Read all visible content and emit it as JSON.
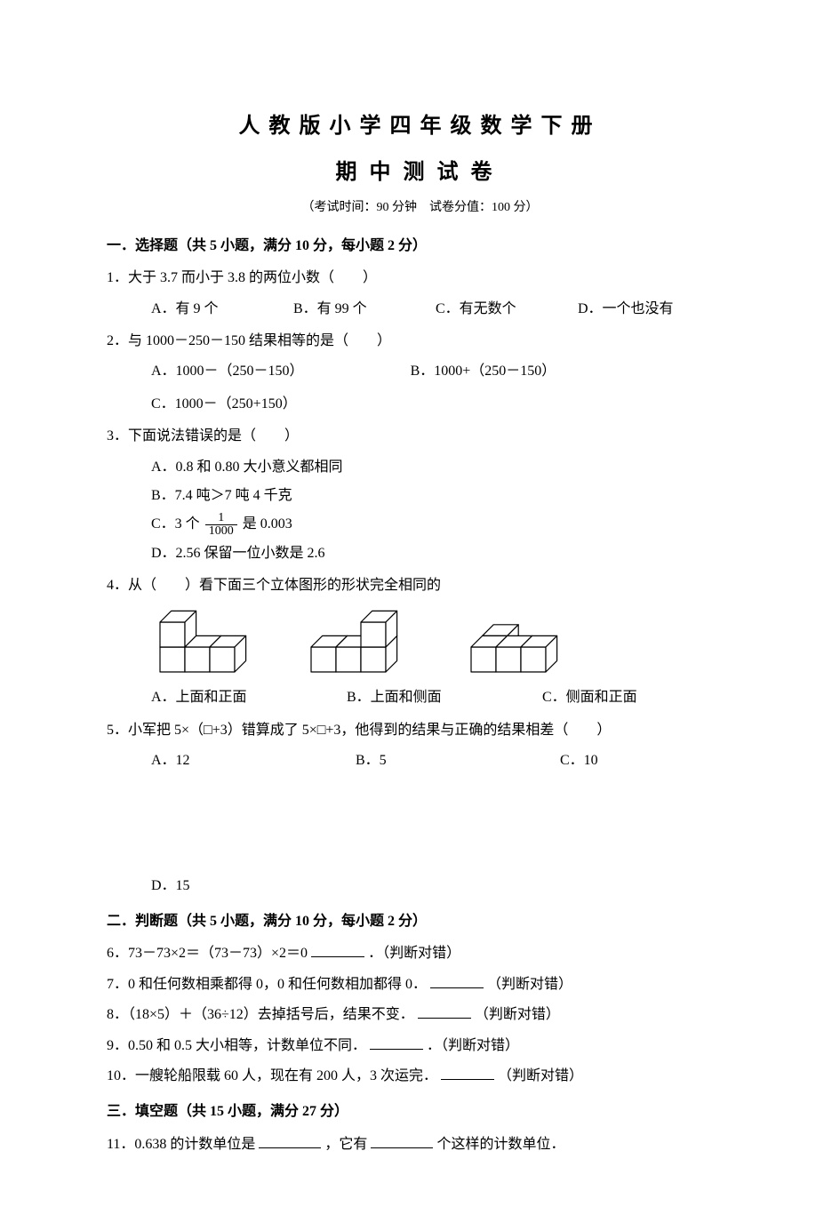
{
  "title1": "人教版小学四年级数学下册",
  "title2": "期中测试卷",
  "meta": "（考试时间：90 分钟　试卷分值：100 分）",
  "sec1": {
    "head": "一．选择题（共 5 小题，满分 10 分，每小题 2 分）",
    "q1": {
      "stem": "1．大于 3.7 而小于 3.8 的两位小数（　　）",
      "A": "A．有 9 个",
      "B": "B．有 99 个",
      "C": "C．有无数个",
      "D": "D．一个也没有"
    },
    "q2": {
      "stem": "2．与 1000－250－150 结果相等的是（　　）",
      "A": "A．1000－（250－150）",
      "B": "B．1000+（250－150）",
      "C": "C．1000－（250+150）"
    },
    "q3": {
      "stem": "3．下面说法错误的是（　　）",
      "A": "A．0.8 和 0.80 大小意义都相同",
      "B": "B．7.4 吨＞7 吨 4 千克",
      "C_pre": "C．3 个",
      "C_num": "1",
      "C_den": "1000",
      "C_post": "是 0.003",
      "D": "D．2.56 保留一位小数是 2.6"
    },
    "q4": {
      "stem": "4．从（　　）看下面三个立体图形的形状完全相同的",
      "A": "A．上面和正面",
      "B": "B．上面和侧面",
      "C": "C．侧面和正面"
    },
    "q5": {
      "stem": "5．小军把 5×（□+3）错算成了 5×□+3，他得到的结果与正确的结果相差（　　）",
      "A": "A．12",
      "B": "B．5",
      "C": "C．10",
      "D": "D．15"
    }
  },
  "sec2": {
    "head": "二．判断题（共 5 小题，满分 10 分，每小题 2 分）",
    "q6_a": "6．73－73×2＝（73－73）×2＝0",
    "q6_b": "．（判断对错）",
    "q7_a": "7．0 和任何数相乘都得 0，0 和任何数相加都得 0．",
    "q7_b": "（判断对错）",
    "q8_a": "8．（18×5）＋（36÷12）去掉括号后，结果不变．",
    "q8_b": "（判断对错）",
    "q9_a": "9．0.50 和 0.5 大小相等，计数单位不同．",
    "q9_b": "．（判断对错）",
    "q10_a": "10．一艘轮船限载 60 人，现在有 200 人，3 次运完．",
    "q10_b": "（判断对错）"
  },
  "sec3": {
    "head": "三．填空题（共 15 小题，满分 27 分）",
    "q11_a": "11．0.638 的计数单位是",
    "q11_b": "，它有",
    "q11_c": "个这样的计数单位．"
  },
  "fig": {
    "stroke": "#000000",
    "fill": "#ffffff",
    "stroke_width": 1.2,
    "unit": 28,
    "k": 0.45
  }
}
